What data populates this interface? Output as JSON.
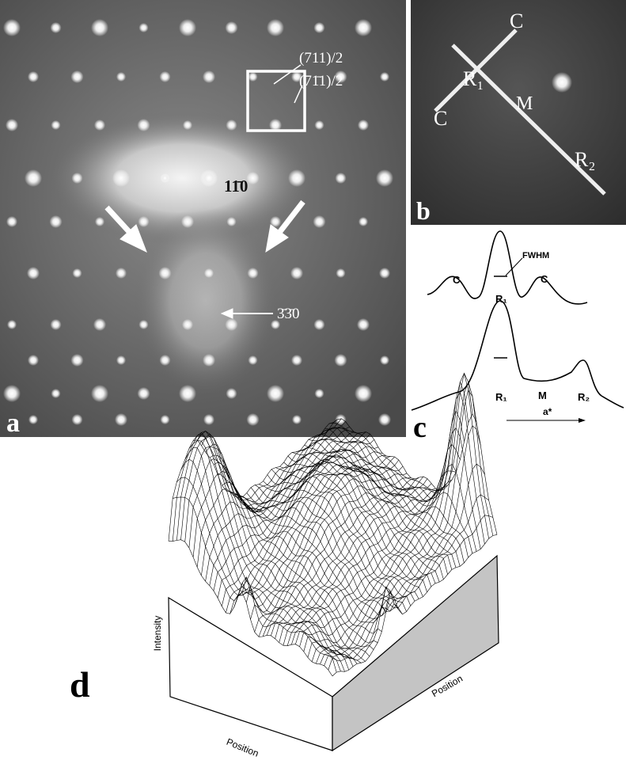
{
  "panel_a": {
    "label": "a",
    "annotations": [
      "(711)/2",
      "(71̄1)/2",
      "11̄0",
      "3̄3̄0"
    ]
  },
  "panel_b": {
    "label": "b",
    "annotations": [
      "C",
      "C",
      "R₁",
      "M",
      "R₂"
    ]
  },
  "panel_c": {
    "label": "c",
    "upper_trace": [
      "FWHM",
      "C",
      "R₁",
      "C"
    ],
    "lower_trace": [
      "R₁",
      "M",
      "R₂",
      "a*"
    ]
  },
  "panel_d": {
    "label": "d",
    "y_axis": "Intensity",
    "x_axes": [
      "Position",
      "Position"
    ]
  }
}
